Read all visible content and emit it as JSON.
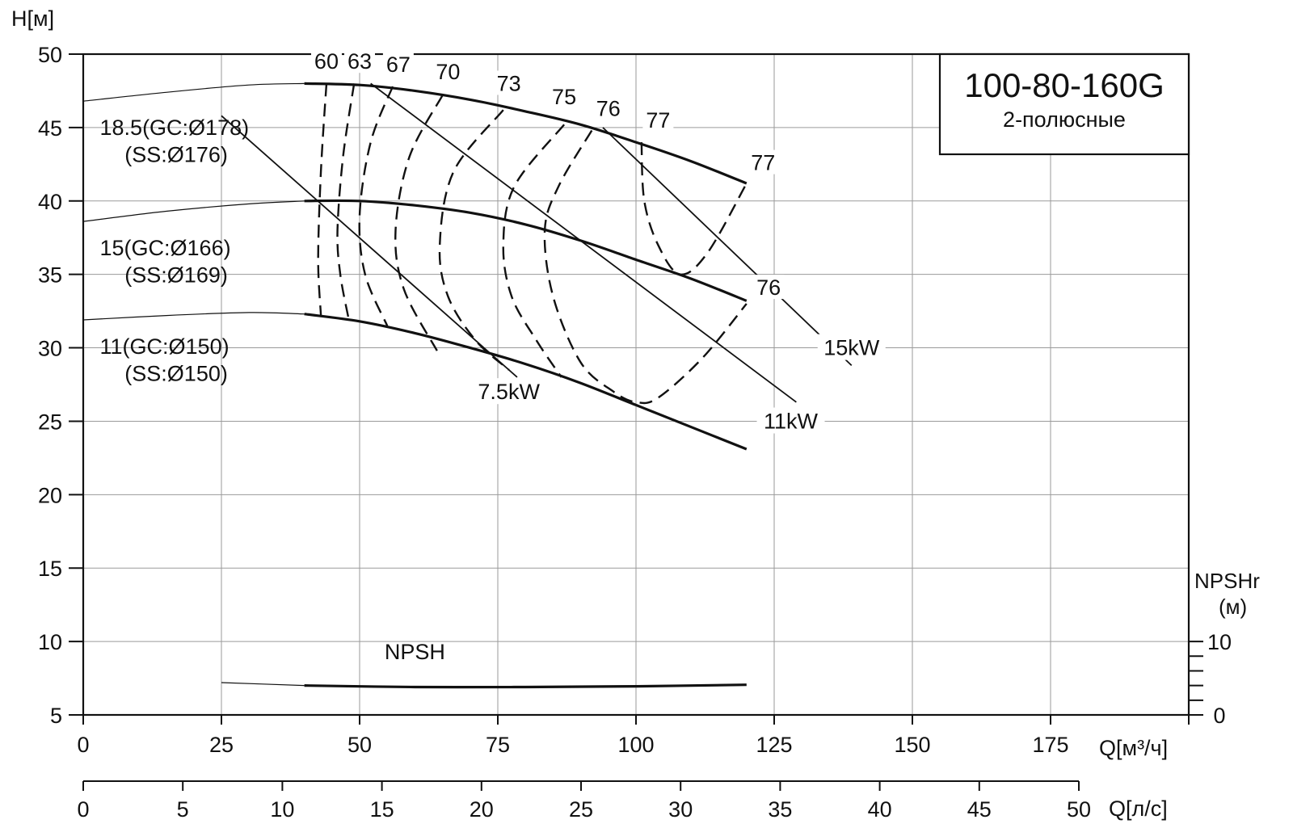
{
  "chart_data": {
    "type": "line",
    "title": "100-80-160G",
    "subtitle": "2-полюсные",
    "ylabel": "H[м]",
    "xlabel": "Q[м³/ч]",
    "x2label": "Q[л/с]",
    "y2label_line1": "NPSHr",
    "y2label_line2": "(м)",
    "xlim": [
      0,
      200
    ],
    "ylim": [
      5,
      50
    ],
    "x2lim": [
      0,
      50
    ],
    "x_ticks": [
      0,
      25,
      50,
      75,
      100,
      125,
      150,
      175
    ],
    "y_ticks": [
      5,
      10,
      15,
      20,
      25,
      30,
      35,
      40,
      45,
      50
    ],
    "x2_ticks": [
      0,
      5,
      10,
      15,
      20,
      25,
      30,
      35,
      40,
      45,
      50
    ],
    "npsh_ticks": [
      0,
      10
    ],
    "grid": true,
    "head_curves": [
      {
        "name": "18.5(GC:Ø178)",
        "name2": "(SS:Ø176)",
        "thin_x": [
          0,
          15,
          30,
          40
        ],
        "thin_y": [
          46.8,
          47.4,
          47.9,
          48.0
        ],
        "x": [
          40,
          50,
          60,
          70,
          80,
          90,
          100,
          110,
          120
        ],
        "y": [
          48.0,
          47.9,
          47.5,
          46.9,
          46.1,
          45.2,
          44.0,
          42.7,
          41.2
        ]
      },
      {
        "name": "15(GC:Ø166)",
        "name2": "(SS:Ø169)",
        "thin_x": [
          0,
          15,
          30,
          40
        ],
        "thin_y": [
          38.6,
          39.3,
          39.8,
          40.0
        ],
        "x": [
          40,
          50,
          60,
          70,
          80,
          90,
          100,
          110,
          120
        ],
        "y": [
          40.0,
          40.0,
          39.7,
          39.2,
          38.4,
          37.3,
          36.0,
          34.7,
          33.2
        ]
      },
      {
        "name": "11(GC:Ø150)",
        "name2": "(SS:Ø150)",
        "thin_x": [
          0,
          15,
          30,
          40
        ],
        "thin_y": [
          31.9,
          32.2,
          32.4,
          32.3
        ],
        "x": [
          40,
          50,
          60,
          70,
          80,
          90,
          100,
          110,
          120
        ],
        "y": [
          32.3,
          31.8,
          31.0,
          30.0,
          28.9,
          27.6,
          26.1,
          24.6,
          23.1
        ]
      }
    ],
    "efficiency_curves": [
      {
        "label": "60",
        "x": [
          44,
          43,
          42.5,
          43
        ],
        "y": [
          48,
          42,
          36,
          32.2
        ]
      },
      {
        "label": "63",
        "x": [
          49,
          47,
          46,
          46.5,
          48
        ],
        "y": [
          48,
          43,
          38,
          35,
          32
        ]
      },
      {
        "label": "67",
        "x": [
          56,
          52,
          50,
          51,
          55
        ],
        "y": [
          47.8,
          44,
          39,
          35,
          31.5
        ]
      },
      {
        "label": "70",
        "x": [
          65,
          59,
          56.5,
          58,
          64
        ],
        "y": [
          47.2,
          43,
          38,
          34,
          29.8
        ]
      },
      {
        "label": "73",
        "x": [
          76,
          67,
          64.5,
          66,
          71,
          77
        ],
        "y": [
          46.2,
          42,
          37,
          33.5,
          30.5,
          28.5
        ]
      },
      {
        "label": "75",
        "x": [
          87,
          78,
          76,
          77.5,
          82,
          86.5
        ],
        "y": [
          45.2,
          41,
          37,
          33.5,
          30.5,
          28.0
        ]
      },
      {
        "label": "76",
        "x": [
          92,
          86,
          83.5,
          85,
          90,
          96,
          100,
          104,
          112,
          120
        ],
        "y": [
          44.8,
          41,
          38,
          33.5,
          29,
          27,
          26.3,
          26.6,
          29.3,
          33.0
        ]
      },
      {
        "label": "77",
        "x": [
          101,
          101.5,
          104,
          108,
          113,
          120
        ],
        "y": [
          44.0,
          40,
          37,
          35,
          36.5,
          41.2
        ]
      }
    ],
    "efficiency_labels": [
      {
        "text": "60",
        "x": 44,
        "y": 49.0
      },
      {
        "text": "63",
        "x": 50,
        "y": 49.0
      },
      {
        "text": "67",
        "x": 57,
        "y": 48.8
      },
      {
        "text": "70",
        "x": 66,
        "y": 48.3
      },
      {
        "text": "73",
        "x": 77,
        "y": 47.5
      },
      {
        "text": "75",
        "x": 87,
        "y": 46.6
      },
      {
        "text": "76",
        "x": 95,
        "y": 45.8
      },
      {
        "text": "77",
        "x": 104,
        "y": 45.0
      },
      {
        "text": "77",
        "x": 123,
        "y": 42.1
      },
      {
        "text": "76",
        "x": 124,
        "y": 33.6
      }
    ],
    "power_lines": [
      {
        "name": "7.5kW",
        "x": [
          25,
          78.5
        ],
        "y": [
          45.8,
          28.0
        ],
        "label_x": 77,
        "label_y": 26.5
      },
      {
        "name": "11kW",
        "x": [
          52,
          129
        ],
        "y": [
          48.0,
          26.3
        ],
        "label_x": 128,
        "label_y": 24.5
      },
      {
        "name": "15kW",
        "x": [
          94,
          139
        ],
        "y": [
          45.0,
          28.8
        ],
        "label_x": 139,
        "label_y": 29.5
      }
    ],
    "npsh_curve": {
      "name": "NPSH",
      "thin_x": [
        25,
        40
      ],
      "thin_y": [
        7.2,
        7.0
      ],
      "x": [
        40,
        60,
        80,
        100,
        120
      ],
      "y": [
        7.0,
        6.9,
        6.9,
        6.95,
        7.05
      ]
    }
  }
}
